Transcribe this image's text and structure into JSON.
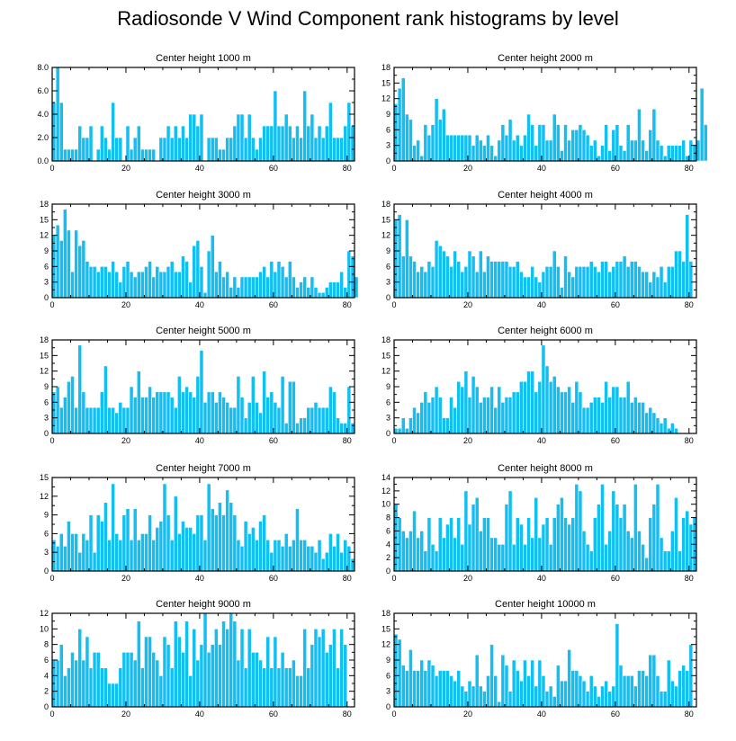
{
  "figure_title": "Radiosonde V Wind Component rank histograms by level",
  "colors": {
    "bar": "#12bff2",
    "bar_edge": "#ffffff",
    "axis": "#000000"
  },
  "chart_data": [
    {
      "type": "bar",
      "title": "Center height 1000 m",
      "xlim": [
        0,
        82
      ],
      "xticks": [
        0,
        20,
        40,
        60,
        80
      ],
      "ylim": [
        0,
        8
      ],
      "yticks": [
        0,
        2,
        4,
        6,
        8
      ],
      "ytick_labels": [
        "0.0",
        "2.0",
        "4.0",
        "6.0",
        "8.0"
      ],
      "values": [
        5,
        8,
        5,
        1,
        1,
        1,
        1,
        3,
        2,
        2,
        3,
        0,
        1,
        3,
        2,
        1,
        5,
        2,
        2,
        0,
        3,
        1,
        2,
        3,
        1,
        1,
        1,
        1,
        0,
        2,
        2,
        3,
        2,
        3,
        2,
        3,
        2,
        4,
        4,
        3,
        4,
        0,
        2,
        2,
        2,
        1,
        1,
        2,
        2,
        3,
        4,
        4,
        2,
        4,
        2,
        1,
        2,
        3,
        3,
        3,
        6,
        3,
        3,
        4,
        3,
        2,
        3,
        2,
        6,
        3,
        4,
        2,
        3,
        2,
        3,
        5,
        2,
        2,
        2,
        3,
        5,
        3
      ]
    },
    {
      "type": "bar",
      "title": "Center height 2000 m",
      "xlim": [
        0,
        82
      ],
      "xticks": [
        0,
        20,
        40,
        60,
        80
      ],
      "ylim": [
        0,
        18
      ],
      "yticks": [
        0,
        3,
        6,
        9,
        12,
        15,
        18
      ],
      "ytick_labels": [
        "0",
        "3",
        "6",
        "9",
        "12",
        "15",
        "18"
      ],
      "values": [
        11,
        14,
        16,
        9,
        8,
        3,
        4,
        1,
        7,
        5,
        7,
        12,
        8,
        10,
        5,
        5,
        5,
        5,
        5,
        5,
        5,
        3,
        5,
        4,
        3,
        5,
        3,
        1,
        4,
        7,
        5,
        8,
        4,
        5,
        3,
        5,
        9,
        7,
        3,
        7,
        7,
        4,
        4,
        9,
        7,
        2,
        7,
        4,
        6,
        6,
        7,
        6,
        5,
        3,
        4,
        1,
        3,
        7,
        2,
        6,
        7,
        3,
        2,
        7,
        4,
        4,
        10,
        4,
        2,
        6,
        10,
        4,
        3,
        1,
        3,
        3,
        3,
        3,
        4,
        1,
        4,
        3,
        4,
        14,
        7
      ]
    },
    {
      "type": "bar",
      "title": "Center height 3000 m",
      "xlim": [
        0,
        82
      ],
      "xticks": [
        0,
        20,
        40,
        60,
        80
      ],
      "ylim": [
        0,
        18
      ],
      "yticks": [
        0,
        3,
        6,
        9,
        12,
        15,
        18
      ],
      "ytick_labels": [
        "0",
        "3",
        "6",
        "9",
        "12",
        "15",
        "18"
      ],
      "values": [
        12,
        14,
        11,
        17,
        13,
        5,
        13,
        10,
        11,
        7,
        6,
        6,
        5,
        6,
        6,
        5,
        7,
        5,
        3,
        6,
        7,
        5,
        4,
        5,
        5,
        6,
        7,
        4,
        6,
        5,
        5,
        6,
        7,
        5,
        5,
        8,
        7,
        3,
        10,
        11,
        6,
        1,
        9,
        12,
        5,
        7,
        4,
        5,
        2,
        4,
        2,
        4,
        4,
        4,
        4,
        4,
        5,
        6,
        4,
        7,
        5,
        7,
        6,
        4,
        7,
        4,
        2,
        3,
        4,
        2,
        4,
        2,
        1,
        1,
        2,
        3,
        3,
        3,
        5,
        2,
        9,
        8,
        4
      ]
    },
    {
      "type": "bar",
      "title": "Center height 4000 m",
      "xlim": [
        0,
        82
      ],
      "xticks": [
        0,
        20,
        40,
        60,
        80
      ],
      "ylim": [
        0,
        18
      ],
      "yticks": [
        0,
        3,
        6,
        9,
        12,
        15,
        18
      ],
      "ytick_labels": [
        "0",
        "3",
        "6",
        "9",
        "12",
        "15",
        "18"
      ],
      "values": [
        15,
        16,
        8,
        15,
        8,
        7,
        5,
        6,
        5,
        7,
        6,
        11,
        10,
        9,
        8,
        6,
        9,
        7,
        5,
        6,
        9,
        8,
        5,
        9,
        5,
        8,
        7,
        7,
        7,
        7,
        7,
        6,
        6,
        7,
        5,
        4,
        4,
        6,
        4,
        3,
        5,
        6,
        6,
        9,
        6,
        2,
        8,
        5,
        4,
        6,
        6,
        6,
        6,
        7,
        6,
        5,
        7,
        7,
        5,
        6,
        7,
        7,
        8,
        6,
        7,
        7,
        6,
        5,
        5,
        3,
        5,
        4,
        6,
        3,
        6,
        6,
        9,
        9,
        7,
        16,
        7
      ]
    },
    {
      "type": "bar",
      "title": "Center height 5000 m",
      "xlim": [
        0,
        82
      ],
      "xticks": [
        0,
        20,
        40,
        60,
        80
      ],
      "ylim": [
        0,
        18
      ],
      "yticks": [
        0,
        3,
        6,
        9,
        12,
        15,
        18
      ],
      "ytick_labels": [
        "0",
        "3",
        "6",
        "9",
        "12",
        "15",
        "18"
      ],
      "values": [
        8,
        9,
        5,
        7,
        10,
        11,
        5,
        17,
        8,
        5,
        5,
        5,
        5,
        8,
        13,
        5,
        5,
        4,
        6,
        5,
        5,
        9,
        7,
        12,
        7,
        7,
        9,
        7,
        8,
        8,
        8,
        8,
        7,
        5,
        11,
        8,
        9,
        8,
        7,
        11,
        16,
        6,
        8,
        8,
        6,
        8,
        7,
        6,
        5,
        5,
        11,
        7,
        3,
        6,
        11,
        6,
        4,
        12,
        7,
        8,
        6,
        5,
        11,
        2,
        10,
        10,
        2,
        3,
        3,
        5,
        5,
        6,
        5,
        5,
        5,
        9,
        8,
        3,
        2,
        2,
        9,
        2
      ]
    },
    {
      "type": "bar",
      "title": "Center height 6000 m",
      "xlim": [
        0,
        82
      ],
      "xticks": [
        0,
        20,
        40,
        60,
        80
      ],
      "ylim": [
        0,
        18
      ],
      "yticks": [
        0,
        3,
        6,
        9,
        12,
        15,
        18
      ],
      "ytick_labels": [
        "0",
        "3",
        "6",
        "9",
        "12",
        "15",
        "18"
      ],
      "values": [
        1,
        1,
        3,
        1,
        3,
        5,
        4,
        6,
        8,
        6,
        7,
        9,
        7,
        3,
        3,
        7,
        5,
        10,
        9,
        12,
        7,
        11,
        9,
        6,
        7,
        7,
        9,
        5,
        9,
        6,
        7,
        7,
        8,
        8,
        10,
        10,
        12,
        12,
        8,
        10,
        17,
        13,
        10,
        11,
        9,
        8,
        8,
        9,
        6,
        10,
        8,
        5,
        5,
        6,
        7,
        7,
        6,
        10,
        7,
        9,
        9,
        7,
        7,
        10,
        6,
        7,
        6,
        6,
        4,
        5,
        4,
        3,
        2,
        3,
        1,
        2,
        1,
        0
      ]
    },
    {
      "type": "bar",
      "title": "Center height 7000 m",
      "xlim": [
        0,
        82
      ],
      "xticks": [
        0,
        20,
        40,
        60,
        80
      ],
      "ylim": [
        0,
        15
      ],
      "yticks": [
        0,
        3,
        6,
        9,
        12,
        15
      ],
      "ytick_labels": [
        "0",
        "3",
        "6",
        "9",
        "12",
        "15"
      ],
      "values": [
        5,
        4,
        6,
        4,
        8,
        6,
        6,
        3,
        6,
        5,
        9,
        3,
        9,
        8,
        11,
        5,
        14,
        6,
        5,
        9,
        10,
        5,
        10,
        5,
        6,
        6,
        9,
        5,
        7,
        8,
        14,
        9,
        5,
        12,
        6,
        8,
        7,
        7,
        6,
        9,
        9,
        5,
        14,
        10,
        9,
        11,
        9,
        13,
        11,
        9,
        5,
        4,
        8,
        6,
        7,
        5,
        8,
        9,
        5,
        3,
        5,
        5,
        4,
        6,
        4,
        5,
        10,
        5,
        5,
        4,
        4,
        3,
        5,
        2,
        3,
        6,
        4,
        6,
        3,
        5,
        4,
        2
      ]
    },
    {
      "type": "bar",
      "title": "Center height 8000 m",
      "xlim": [
        0,
        82
      ],
      "xticks": [
        0,
        20,
        40,
        60,
        80
      ],
      "ylim": [
        0,
        14
      ],
      "yticks": [
        0,
        2,
        4,
        6,
        8,
        10,
        12,
        14
      ],
      "ytick_labels": [
        "0",
        "2",
        "4",
        "6",
        "8",
        "10",
        "12",
        "14"
      ],
      "values": [
        10,
        8,
        6,
        5,
        6,
        9,
        5,
        6,
        3,
        8,
        4,
        3,
        8,
        5,
        7,
        8,
        5,
        8,
        4,
        12,
        7,
        10,
        11,
        6,
        8,
        8,
        5,
        5,
        4,
        4,
        10,
        12,
        4,
        8,
        7,
        4,
        8,
        5,
        11,
        5,
        7,
        8,
        4,
        8,
        10,
        11,
        8,
        7,
        8,
        13,
        12,
        6,
        4,
        3,
        8,
        10,
        13,
        4,
        6,
        12,
        10,
        8,
        10,
        6,
        5,
        13,
        6,
        4,
        2,
        8,
        10,
        13,
        5,
        3,
        3,
        6,
        11,
        3,
        8,
        9,
        7,
        8
      ]
    },
    {
      "type": "bar",
      "title": "Center height 9000 m",
      "xlim": [
        0,
        82
      ],
      "xticks": [
        0,
        20,
        40,
        60,
        80
      ],
      "ylim": [
        0,
        12
      ],
      "yticks": [
        0,
        2,
        4,
        6,
        8,
        10,
        12
      ],
      "ytick_labels": [
        "0",
        "2",
        "4",
        "6",
        "8",
        "10",
        "12"
      ],
      "values": [
        6,
        6,
        8,
        4,
        5,
        7,
        6,
        10,
        6,
        9,
        5,
        7,
        7,
        5,
        5,
        3,
        3,
        3,
        5,
        7,
        7,
        7,
        6,
        11,
        5,
        9,
        9,
        7,
        6,
        4,
        9,
        8,
        5,
        11,
        9,
        7,
        11,
        4,
        10,
        6,
        8,
        12,
        7,
        8,
        10,
        8,
        11,
        10,
        12,
        11,
        6,
        10,
        5,
        10,
        7,
        7,
        6,
        5,
        9,
        5,
        9,
        5,
        7,
        5,
        5,
        6,
        4,
        4,
        10,
        5,
        8,
        10,
        9,
        10,
        7,
        8,
        10,
        5,
        10,
        8
      ]
    },
    {
      "type": "bar",
      "title": "Center height 10000 m",
      "xlim": [
        0,
        82
      ],
      "xticks": [
        0,
        20,
        40,
        60,
        80
      ],
      "ylim": [
        0,
        18
      ],
      "yticks": [
        0,
        3,
        6,
        9,
        12,
        15,
        18
      ],
      "ytick_labels": [
        "0",
        "3",
        "6",
        "9",
        "12",
        "15",
        "18"
      ],
      "values": [
        14,
        13,
        8,
        7,
        11,
        7,
        7,
        9,
        7,
        9,
        8,
        6,
        7,
        7,
        7,
        6,
        5,
        7,
        4,
        3,
        5,
        4,
        10,
        4,
        3,
        6,
        12,
        6,
        1,
        10,
        8,
        3,
        9,
        7,
        5,
        9,
        6,
        9,
        4,
        9,
        6,
        3,
        4,
        2,
        8,
        5,
        5,
        11,
        7,
        7,
        6,
        5,
        3,
        6,
        4,
        2,
        4,
        5,
        3,
        4,
        16,
        8,
        6,
        6,
        6,
        4,
        7,
        7,
        6,
        10,
        10,
        6,
        3,
        3,
        9,
        5,
        4,
        7,
        8,
        7,
        12
      ]
    }
  ]
}
